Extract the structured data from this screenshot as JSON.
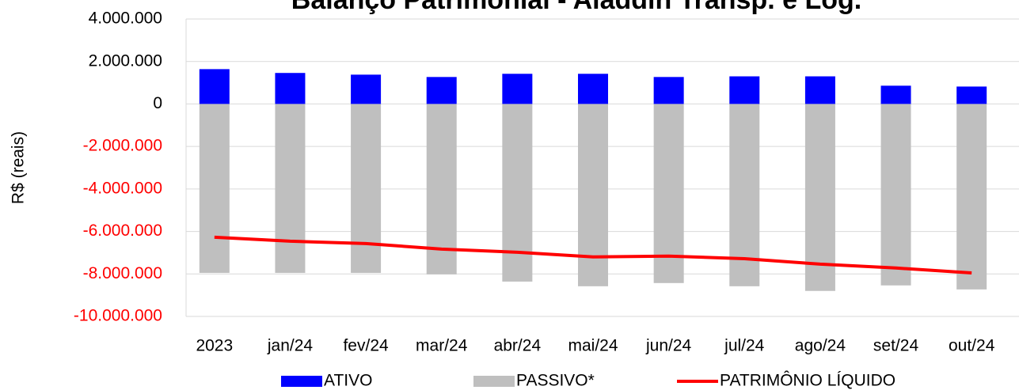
{
  "chart_data": {
    "type": "bar_line",
    "title": "Balanço Patrimonial - Aladdin Transp. e Log.",
    "y_axis_label": "R$ (reais)",
    "categories": [
      "2023",
      "jan/24",
      "fev/24",
      "mar/24",
      "abr/24",
      "mai/24",
      "jun/24",
      "jul/24",
      "ago/24",
      "set/24",
      "out/24"
    ],
    "series": [
      {
        "name": "ATIVO",
        "type": "bar",
        "color": "#0000ff",
        "values": [
          1640000,
          1460000,
          1380000,
          1270000,
          1420000,
          1420000,
          1270000,
          1300000,
          1300000,
          860000,
          820000
        ]
      },
      {
        "name": "PASSIVO*",
        "type": "bar",
        "color": "#bfbfbf",
        "values": [
          -7950000,
          -7950000,
          -7950000,
          -8020000,
          -8360000,
          -8580000,
          -8430000,
          -8580000,
          -8800000,
          -8540000,
          -8730000
        ]
      },
      {
        "name": "PATRIMÔNIO LÍQUIDO",
        "type": "line",
        "color": "#ff0000",
        "values": [
          -6270000,
          -6460000,
          -6570000,
          -6830000,
          -6980000,
          -7200000,
          -7160000,
          -7280000,
          -7540000,
          -7720000,
          -7950000
        ]
      }
    ],
    "ylim": [
      -10000000,
      4000000
    ],
    "yticks": [
      {
        "value": -10000000,
        "label": "-10.000.000"
      },
      {
        "value": -8000000,
        "label": "-8.000.000"
      },
      {
        "value": -6000000,
        "label": "-6.000.000"
      },
      {
        "value": -4000000,
        "label": "-4.000.000"
      },
      {
        "value": -2000000,
        "label": "-2.000.000"
      },
      0,
      {
        "value": 2000000,
        "label": "2.000.000"
      },
      {
        "value": 4000000,
        "label": "4.000.000"
      }
    ],
    "negative_tick_color": "#ff0000",
    "grid": true,
    "legend": "bottom"
  }
}
